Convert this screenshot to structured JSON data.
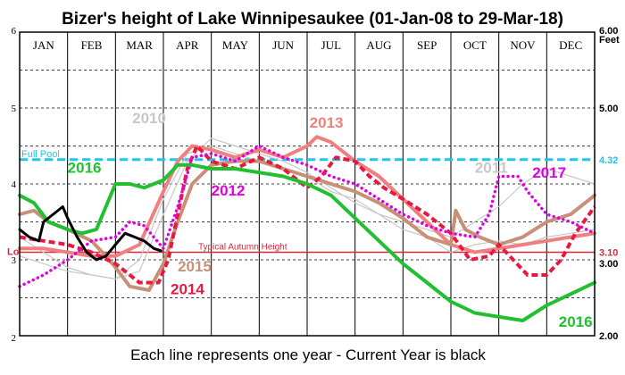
{
  "chart_data": {
    "type": "line",
    "title": "Bizer's height of Lake Winnipesaukee (01-Jan-08  to  29-Mar-18)",
    "caption": "Each line represents one year - Current Year is black",
    "right_axis_unit": "Feet",
    "months": [
      "JAN",
      "FEB",
      "MAR",
      "APR",
      "MAY",
      "JUN",
      "JUL",
      "AUG",
      "SEP",
      "OCT",
      "NOV",
      "DEC"
    ],
    "ylim": [
      2,
      6
    ],
    "left_ticks": [
      "2",
      "3",
      "4",
      "5",
      "6"
    ],
    "right_ticks": [
      {
        "value": 6,
        "label": "6.00"
      },
      {
        "value": 5,
        "label": "5.00"
      },
      {
        "value": 3,
        "label": "3.00"
      },
      {
        "value": 2,
        "label": "2.00"
      }
    ],
    "reference_lines": [
      {
        "name": "Full Pool",
        "value": 4.32,
        "label": "4.32",
        "color": "#22c4e8"
      },
      {
        "name": "Typical Autumn Height",
        "value": 3.1,
        "label": "3.10",
        "left_label": "Lo",
        "color": "#d8283c"
      }
    ],
    "grid": true,
    "x_unit": "month index (0 = 1 Jan, 12 = 31 Dec)",
    "series": [
      {
        "name": "2010",
        "color": "#c8c8c8",
        "style": "thin",
        "points": [
          [
            0,
            3.05
          ],
          [
            0.5,
            2.95
          ],
          [
            1,
            2.85
          ],
          [
            1.5,
            2.8
          ],
          [
            2,
            2.75
          ],
          [
            2.5,
            2.85
          ],
          [
            3,
            3.6
          ],
          [
            3.5,
            4.3
          ],
          [
            4,
            4.6
          ],
          [
            4.5,
            4.5
          ],
          [
            5,
            4.4
          ],
          [
            5.5,
            4.3
          ],
          [
            6,
            4.15
          ],
          [
            6.5,
            3.95
          ],
          [
            7,
            3.75
          ],
          [
            7.5,
            3.6
          ],
          [
            8,
            3.4
          ],
          [
            8.5,
            3.3
          ],
          [
            9,
            3.1
          ],
          [
            9.5,
            3.2
          ],
          [
            10,
            3.25
          ],
          [
            10.5,
            3.2
          ],
          [
            11,
            3.3
          ],
          [
            11.5,
            3.35
          ],
          [
            12,
            3.4
          ]
        ]
      },
      {
        "name": "2011",
        "color": "#c8c8c8",
        "style": "thin",
        "points": [
          [
            0,
            3.3
          ],
          [
            0.5,
            3.1
          ],
          [
            1,
            2.9
          ],
          [
            1.5,
            2.8
          ],
          [
            2,
            2.75
          ],
          [
            2.5,
            3.0
          ],
          [
            3,
            3.8
          ],
          [
            3.5,
            4.4
          ],
          [
            4,
            4.5
          ],
          [
            4.5,
            4.4
          ],
          [
            5,
            4.3
          ],
          [
            5.5,
            4.2
          ],
          [
            6,
            4.1
          ],
          [
            6.5,
            3.9
          ],
          [
            7,
            3.8
          ],
          [
            7.5,
            3.6
          ],
          [
            8,
            3.5
          ],
          [
            8.5,
            3.4
          ],
          [
            9,
            3.3
          ],
          [
            9.5,
            3.5
          ],
          [
            10,
            3.7
          ],
          [
            10.5,
            4.0
          ],
          [
            11,
            4.2
          ],
          [
            11.5,
            4.1
          ],
          [
            12,
            4.0
          ]
        ]
      },
      {
        "name": "2013",
        "color": "#f08080",
        "style": "thick",
        "points": [
          [
            0,
            3.15
          ],
          [
            0.5,
            3.15
          ],
          [
            1,
            3.1
          ],
          [
            1.5,
            3.05
          ],
          [
            2,
            3.05
          ],
          [
            2.5,
            3.2
          ],
          [
            3,
            3.9
          ],
          [
            3.3,
            4.3
          ],
          [
            3.6,
            4.5
          ],
          [
            4,
            4.45
          ],
          [
            4.5,
            4.35
          ],
          [
            5,
            4.45
          ],
          [
            5.5,
            4.35
          ],
          [
            6,
            4.5
          ],
          [
            6.2,
            4.62
          ],
          [
            6.5,
            4.55
          ],
          [
            7,
            4.3
          ],
          [
            7.5,
            4.1
          ],
          [
            8,
            3.8
          ],
          [
            8.5,
            3.5
          ],
          [
            9,
            3.2
          ],
          [
            9.5,
            3.1
          ],
          [
            10,
            3.15
          ],
          [
            10.5,
            3.2
          ],
          [
            11,
            3.25
          ],
          [
            11.5,
            3.3
          ],
          [
            12,
            3.35
          ]
        ]
      },
      {
        "name": "2015",
        "color": "#c89078",
        "style": "thick",
        "points": [
          [
            0,
            3.6
          ],
          [
            0.3,
            3.65
          ],
          [
            0.6,
            3.5
          ],
          [
            1,
            3.4
          ],
          [
            1.5,
            3.25
          ],
          [
            1.8,
            3.05
          ],
          [
            2,
            2.9
          ],
          [
            2.3,
            2.65
          ],
          [
            2.7,
            2.6
          ],
          [
            3,
            2.95
          ],
          [
            3.3,
            3.5
          ],
          [
            3.6,
            4.0
          ],
          [
            4,
            4.25
          ],
          [
            4.5,
            4.3
          ],
          [
            5,
            4.3
          ],
          [
            5.5,
            4.2
          ],
          [
            6,
            4.1
          ],
          [
            6.5,
            4.0
          ],
          [
            7,
            3.9
          ],
          [
            7.5,
            3.75
          ],
          [
            8,
            3.55
          ],
          [
            8.5,
            3.3
          ],
          [
            9,
            3.2
          ],
          [
            9.1,
            3.65
          ],
          [
            9.3,
            3.4
          ],
          [
            9.6,
            3.3
          ],
          [
            10,
            3.2
          ],
          [
            10.5,
            3.3
          ],
          [
            11,
            3.5
          ],
          [
            11.5,
            3.6
          ],
          [
            12,
            3.85
          ]
        ]
      },
      {
        "name": "2014",
        "color": "#e81840",
        "style": "dashed",
        "points": [
          [
            0,
            3.3
          ],
          [
            0.5,
            3.25
          ],
          [
            1,
            3.2
          ],
          [
            1.5,
            3.1
          ],
          [
            2,
            2.95
          ],
          [
            2.5,
            2.7
          ],
          [
            2.9,
            2.7
          ],
          [
            3.1,
            3.0
          ],
          [
            3.3,
            3.6
          ],
          [
            3.5,
            4.2
          ],
          [
            3.7,
            4.5
          ],
          [
            4,
            4.3
          ],
          [
            4.5,
            4.2
          ],
          [
            5,
            4.35
          ],
          [
            5.5,
            4.2
          ],
          [
            6,
            3.95
          ],
          [
            6.3,
            4.1
          ],
          [
            6.6,
            4.35
          ],
          [
            7,
            4.3
          ],
          [
            7.3,
            4.1
          ],
          [
            7.6,
            3.95
          ],
          [
            8,
            3.8
          ],
          [
            8.5,
            3.6
          ],
          [
            9,
            3.35
          ],
          [
            9.4,
            3.0
          ],
          [
            9.8,
            3.05
          ],
          [
            10,
            3.2
          ],
          [
            10.3,
            3.0
          ],
          [
            10.6,
            2.8
          ],
          [
            11,
            2.8
          ],
          [
            11.3,
            3.0
          ],
          [
            11.6,
            3.35
          ],
          [
            12,
            3.7
          ]
        ]
      },
      {
        "name": "2012",
        "color": "#e000e0",
        "style": "dotted",
        "points": [
          [
            0,
            2.65
          ],
          [
            0.5,
            2.8
          ],
          [
            1,
            3.0
          ],
          [
            1.5,
            3.25
          ],
          [
            2,
            3.3
          ],
          [
            2.3,
            3.5
          ],
          [
            2.6,
            3.45
          ],
          [
            3,
            3.15
          ],
          [
            3.3,
            3.7
          ],
          [
            3.6,
            4.35
          ],
          [
            4,
            4.4
          ],
          [
            4.5,
            4.3
          ],
          [
            5,
            4.5
          ],
          [
            5.5,
            4.35
          ],
          [
            6,
            4.25
          ],
          [
            6.5,
            4.1
          ],
          [
            7,
            4.0
          ],
          [
            7.5,
            3.8
          ],
          [
            8,
            3.6
          ],
          [
            8.5,
            3.45
          ],
          [
            9,
            3.35
          ],
          [
            9.5,
            3.3
          ],
          [
            9.8,
            3.6
          ],
          [
            10,
            4.1
          ],
          [
            10.4,
            4.1
          ],
          [
            10.6,
            3.9
          ],
          [
            11,
            3.6
          ],
          [
            11.5,
            3.5
          ],
          [
            12,
            3.35
          ]
        ]
      },
      {
        "name": "2016",
        "color": "#20c030",
        "style": "thick",
        "points": [
          [
            0,
            3.85
          ],
          [
            0.3,
            3.75
          ],
          [
            0.6,
            3.5
          ],
          [
            1,
            3.4
          ],
          [
            1.3,
            3.35
          ],
          [
            1.6,
            3.4
          ],
          [
            1.8,
            3.7
          ],
          [
            2,
            4.0
          ],
          [
            2.3,
            4.0
          ],
          [
            2.6,
            3.95
          ],
          [
            3,
            4.05
          ],
          [
            3.3,
            4.25
          ],
          [
            3.6,
            4.25
          ],
          [
            4,
            4.2
          ],
          [
            4.5,
            4.2
          ],
          [
            5,
            4.15
          ],
          [
            5.5,
            4.1
          ],
          [
            6,
            4.0
          ],
          [
            6.5,
            3.85
          ],
          [
            7,
            3.55
          ],
          [
            7.5,
            3.25
          ],
          [
            8,
            2.95
          ],
          [
            8.5,
            2.7
          ],
          [
            9,
            2.45
          ],
          [
            9.5,
            2.3
          ],
          [
            10,
            2.25
          ],
          [
            10.5,
            2.2
          ],
          [
            11,
            2.4
          ],
          [
            11.5,
            2.55
          ],
          [
            12,
            2.7
          ]
        ]
      },
      {
        "name": "Current Year",
        "color": "#000000",
        "style": "current",
        "points": [
          [
            0,
            3.4
          ],
          [
            0.2,
            3.3
          ],
          [
            0.4,
            3.25
          ],
          [
            0.5,
            3.5
          ],
          [
            0.7,
            3.6
          ],
          [
            0.9,
            3.7
          ],
          [
            1.0,
            3.55
          ],
          [
            1.2,
            3.3
          ],
          [
            1.4,
            3.1
          ],
          [
            1.6,
            3.0
          ],
          [
            1.8,
            3.05
          ],
          [
            2.0,
            3.2
          ],
          [
            2.2,
            3.35
          ],
          [
            2.4,
            3.3
          ],
          [
            2.6,
            3.25
          ],
          [
            2.8,
            3.15
          ],
          [
            2.95,
            3.12
          ]
        ]
      }
    ],
    "labels": [
      {
        "text": "2010",
        "x": 2.35,
        "y": 4.8,
        "color": "#c8c8c8",
        "size": 17
      },
      {
        "text": "2013",
        "x": 6.05,
        "y": 4.74,
        "color": "#f08080",
        "size": 17
      },
      {
        "text": "2016",
        "x": 1.0,
        "y": 4.15,
        "color": "#20c030",
        "size": 17
      },
      {
        "text": "2011",
        "x": 9.5,
        "y": 4.15,
        "color": "#c8c8c8",
        "size": 17
      },
      {
        "text": "2017",
        "x": 10.7,
        "y": 4.08,
        "color": "#e000e0",
        "size": 17
      },
      {
        "text": "2012",
        "x": 4.0,
        "y": 3.85,
        "color": "#e000e0",
        "size": 17
      },
      {
        "text": "2015",
        "x": 3.3,
        "y": 2.85,
        "color": "#c89078",
        "size": 17
      },
      {
        "text": "2014",
        "x": 3.15,
        "y": 2.55,
        "color": "#e81840",
        "size": 17
      },
      {
        "text": "2016",
        "x": 11.25,
        "y": 2.12,
        "color": "#20c030",
        "size": 17
      }
    ]
  }
}
